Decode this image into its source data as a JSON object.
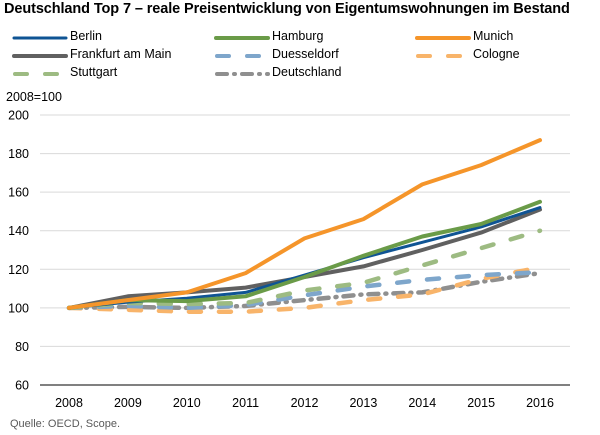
{
  "chart_data": {
    "type": "line",
    "title": "Deutschland Top 7 – reale Preisentwicklung von Eigentumswohnungen im Bestand",
    "ylabel": "2008=100",
    "xlabel": "",
    "source": "Quelle: OECD, Scope.",
    "x": [
      "2008",
      "2009",
      "2010",
      "2011",
      "2012",
      "2013",
      "2014",
      "2015",
      "2016"
    ],
    "ylim": [
      60,
      200
    ],
    "yticks": [
      "60",
      "80",
      "100",
      "120",
      "140",
      "160",
      "180",
      "200"
    ],
    "grid": true,
    "legend_position": "top",
    "series": [
      {
        "name": "Berlin",
        "color": "#0f5494",
        "style": "solid",
        "values": [
          100,
          103,
          105,
          108,
          117,
          126,
          134,
          142,
          152
        ]
      },
      {
        "name": "Hamburg",
        "color": "#6a9b48",
        "style": "solid",
        "values": [
          100,
          104,
          103.5,
          106,
          116,
          127,
          137,
          143.5,
          155
        ]
      },
      {
        "name": "Munich",
        "color": "#f5952a",
        "style": "solid",
        "values": [
          100,
          104,
          108,
          118,
          136,
          146,
          164,
          174,
          187
        ]
      },
      {
        "name": "Frankfurt am Main",
        "color": "#606060",
        "style": "solid",
        "values": [
          100,
          106,
          108,
          110.5,
          116,
          121.5,
          130,
          139,
          151
        ]
      },
      {
        "name": "Duesseldorf",
        "color": "#7ea6cb",
        "style": "dash",
        "values": [
          100,
          101,
          100,
          101.5,
          106.5,
          111,
          114.5,
          117,
          118.5
        ]
      },
      {
        "name": "Cologne",
        "color": "#f8b46a",
        "style": "dash",
        "values": [
          100,
          99,
          98,
          98,
          100,
          104,
          107,
          115,
          121
        ]
      },
      {
        "name": "Stuttgart",
        "color": "#9dbb82",
        "style": "dash",
        "values": [
          100,
          102.5,
          102,
          102.5,
          109,
          113,
          122,
          131,
          140
        ]
      },
      {
        "name": "Deutschland",
        "color": "#8f8f8f",
        "style": "dashdot",
        "values": [
          100,
          100.5,
          100,
          101,
          104,
          107,
          108,
          113.5,
          118
        ]
      }
    ]
  }
}
